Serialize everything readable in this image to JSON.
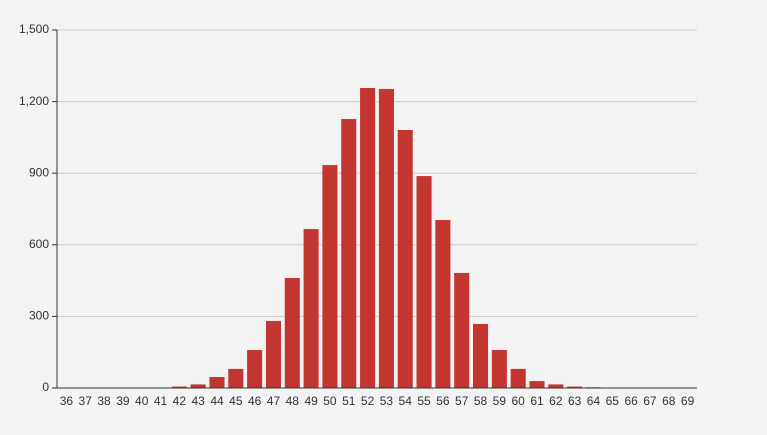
{
  "chart_data": {
    "type": "bar",
    "categories": [
      "36",
      "37",
      "38",
      "39",
      "40",
      "41",
      "42",
      "43",
      "44",
      "45",
      "46",
      "47",
      "48",
      "49",
      "50",
      "51",
      "52",
      "53",
      "54",
      "55",
      "56",
      "57",
      "58",
      "59",
      "60",
      "61",
      "62",
      "63",
      "64",
      "65",
      "66",
      "67",
      "68",
      "69"
    ],
    "values": [
      0,
      0,
      0,
      0,
      0,
      2,
      6,
      15,
      46,
      80,
      159,
      281,
      461,
      666,
      934,
      1127,
      1257,
      1253,
      1081,
      888,
      704,
      482,
      268,
      159,
      80,
      29,
      15,
      6,
      3,
      0,
      0,
      0,
      0,
      0
    ],
    "color": "#c23531",
    "ylim": [
      0,
      1500
    ],
    "yticks": [
      0,
      300,
      600,
      900,
      {
        "value": 1200,
        "label": "1,200"
      },
      {
        "value": 1500,
        "label": "1,500"
      }
    ],
    "grid": true
  }
}
